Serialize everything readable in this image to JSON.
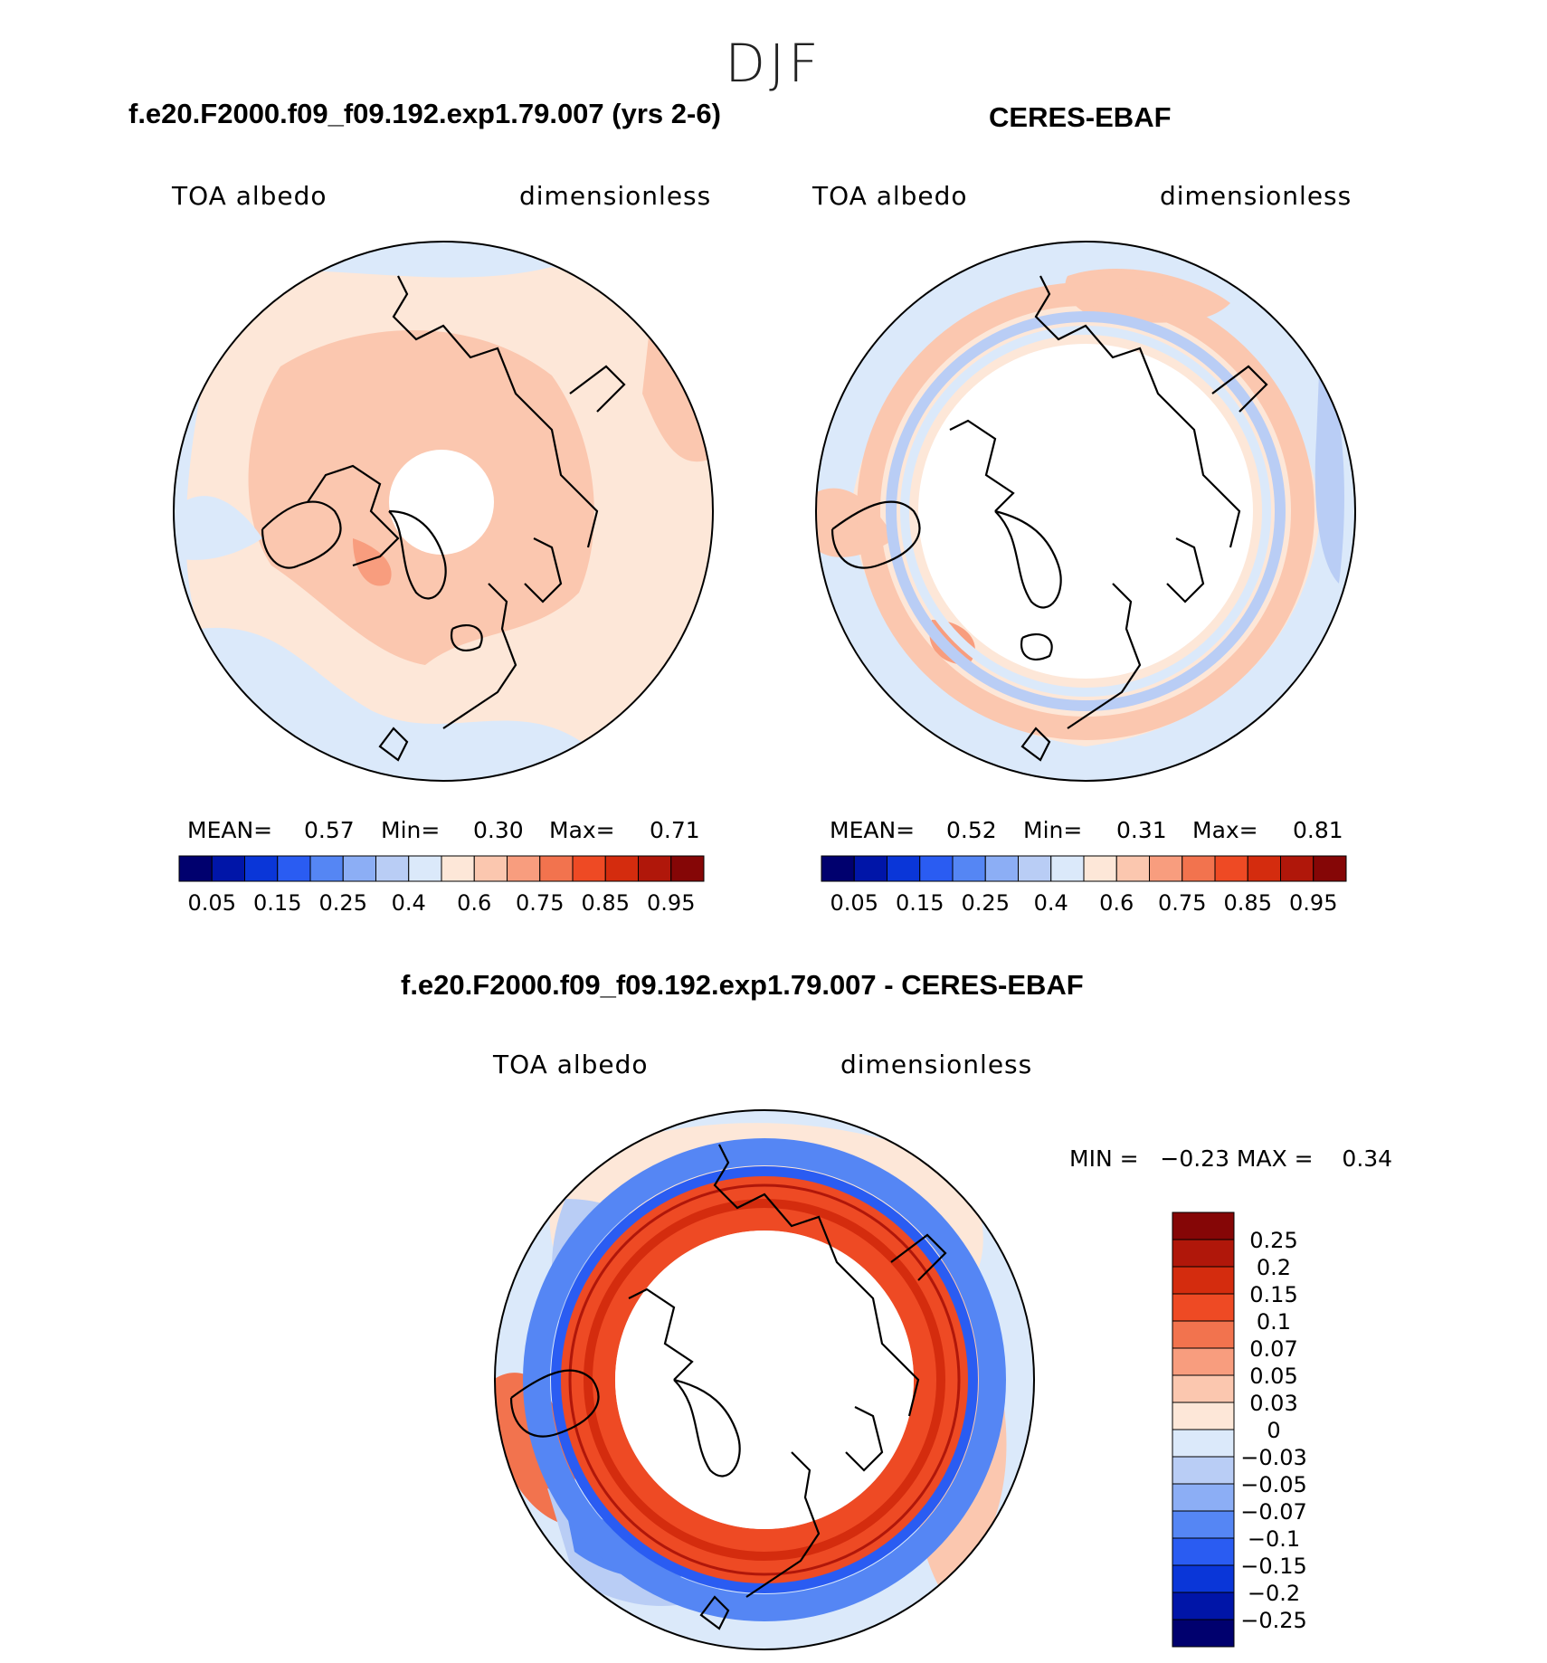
{
  "header": {
    "season": "DJF"
  },
  "panels": {
    "model": {
      "title": "f.e20.F2000.f09_f09.192.exp1.79.007 (yrs 2-6)",
      "variable": "TOA albedo",
      "units": "dimensionless",
      "stats": {
        "mean_label": "MEAN=",
        "mean": "0.57",
        "min_label": "Min=",
        "min": "0.30",
        "max_label": "Max=",
        "max": "0.71"
      }
    },
    "obs": {
      "title": "CERES-EBAF",
      "variable": "TOA albedo",
      "units": "dimensionless",
      "stats": {
        "mean_label": "MEAN=",
        "mean": "0.52",
        "min_label": "Min=",
        "min": "0.31",
        "max_label": "Max=",
        "max": "0.81"
      }
    },
    "diff": {
      "title": "f.e20.F2000.f09_f09.192.exp1.79.007 - CERES-EBAF",
      "variable": "TOA albedo",
      "units": "dimensionless",
      "stats_text": "MIN =   −0.23 MAX =    0.34"
    }
  },
  "colorbar_abs": {
    "colors": [
      "#00006e",
      "#0015a8",
      "#0a36d8",
      "#2a5cf2",
      "#5586f4",
      "#8caef5",
      "#b9cdf5",
      "#dbe9fa",
      "#fde7d8",
      "#fbc7af",
      "#f89d7e",
      "#f2734e",
      "#ee4a24",
      "#d42c0e",
      "#b0170a",
      "#850606"
    ],
    "tick_labels": [
      "0.05",
      "0.15",
      "0.25",
      "0.4",
      "0.6",
      "0.75",
      "0.85",
      "0.95"
    ]
  },
  "colorbar_diff": {
    "colors": [
      "#850606",
      "#b0170a",
      "#d42c0e",
      "#ee4a24",
      "#f2734e",
      "#f89d7e",
      "#fbc7af",
      "#fde7d8",
      "#dbe9fa",
      "#b9cdf5",
      "#8caef5",
      "#5586f4",
      "#2a5cf2",
      "#0a36d8",
      "#0015a8",
      "#00006e"
    ],
    "tick_labels": [
      "0.25",
      "0.2",
      "0.15",
      "0.1",
      "0.07",
      "0.05",
      "0.03",
      "0",
      "−0.03",
      "−0.05",
      "−0.07",
      "−0.1",
      "−0.15",
      "−0.2",
      "−0.25"
    ]
  },
  "palette": {
    "land_outline": "#000000",
    "missing": "#ffffff"
  }
}
